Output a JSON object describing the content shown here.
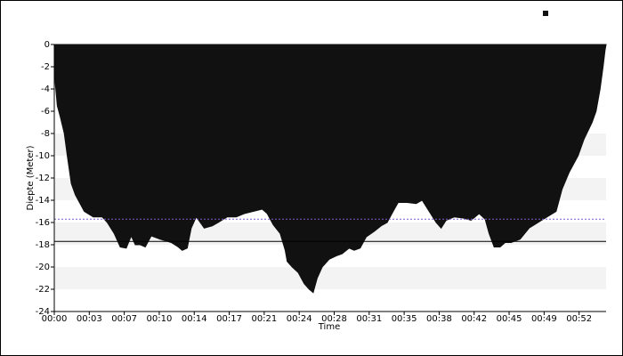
{
  "chart_data": {
    "type": "area",
    "xlabel": "Time",
    "ylabel": "Diepte (Meter)",
    "x": [
      0,
      0.1,
      0.3,
      0.6,
      1.0,
      1.3,
      1.7,
      2.1,
      3.0,
      3.9,
      4.8,
      5.3,
      6.0,
      6.6,
      7.2,
      7.7,
      8.1,
      8.6,
      9.1,
      9.7,
      10.6,
      11.7,
      12.4,
      12.8,
      13.3,
      13.7,
      14.2,
      15.0,
      15.8,
      16.4,
      17.3,
      18.2,
      19.0,
      19.9,
      20.8,
      21.3,
      21.9,
      22.6,
      23.1,
      23.3,
      23.8,
      24.4,
      25.0,
      25.5,
      25.9,
      26.3,
      26.8,
      27.5,
      28.2,
      28.8,
      29.5,
      30.0,
      30.6,
      31.2,
      32.0,
      32.7,
      33.3,
      33.9,
      34.4,
      35.3,
      36.2,
      36.8,
      37.5,
      38.2,
      38.7,
      39.2,
      40.0,
      40.9,
      41.7,
      42.5,
      43.1,
      43.5,
      44.0,
      44.6,
      45.1,
      45.7,
      46.6,
      47.5,
      48.4,
      49.3,
      50.2,
      50.8,
      51.5,
      52.4,
      53.0,
      53.8,
      54.2,
      54.6,
      54.9,
      55.1,
      55.2
    ],
    "series": [
      {
        "color": "#111111",
        "values": [
          0,
          -3.5,
          -5.5,
          -6.5,
          -8,
          -10,
          -12.5,
          -13.5,
          -15,
          -15.5,
          -15.5,
          -16,
          -17,
          -18.2,
          -18.3,
          -17.2,
          -18,
          -18,
          -18.2,
          -17.2,
          -17.5,
          -17.8,
          -18.2,
          -18.5,
          -18.3,
          -16.5,
          -15.5,
          -16.5,
          -16.3,
          -16,
          -15.5,
          -15.5,
          -15.2,
          -15,
          -14.8,
          -15.2,
          -16.2,
          -17,
          -18.5,
          -19.5,
          -20,
          -20.5,
          -21.5,
          -22,
          -22.3,
          -21,
          -20,
          -19.3,
          -19,
          -18.8,
          -18.3,
          -18.5,
          -18.3,
          -17.3,
          -16.8,
          -16.3,
          -16,
          -15,
          -14.2,
          -14.2,
          -14.3,
          -14,
          -15,
          -16,
          -16.5,
          -15.8,
          -15.5,
          -15.6,
          -15.8,
          -15.2,
          -15.7,
          -17,
          -18.2,
          -18.2,
          -17.8,
          -17.8,
          -17.5,
          -16.5,
          -16,
          -15.5,
          -15,
          -13,
          -11.5,
          -10,
          -8.5,
          -7,
          -6,
          -4,
          -2,
          -0.5,
          0
        ]
      }
    ],
    "reference_lines": [
      {
        "value": -15.7,
        "color": "#7a5cc4",
        "style": "dashed"
      },
      {
        "value": -17.7,
        "color": "#000000",
        "style": "solid"
      }
    ],
    "xlim": [
      0,
      55.2
    ],
    "xticks": [
      {
        "value": 0,
        "label": "00:00"
      },
      {
        "value": 3.5,
        "label": "00:03"
      },
      {
        "value": 7,
        "label": "00:07"
      },
      {
        "value": 10.5,
        "label": "00:10"
      },
      {
        "value": 14,
        "label": "00:14"
      },
      {
        "value": 17.5,
        "label": "00:17"
      },
      {
        "value": 21,
        "label": "00:21"
      },
      {
        "value": 24.5,
        "label": "00:24"
      },
      {
        "value": 28,
        "label": "00:28"
      },
      {
        "value": 31.5,
        "label": "00:31"
      },
      {
        "value": 35,
        "label": "00:35"
      },
      {
        "value": 38.5,
        "label": "00:38"
      },
      {
        "value": 42,
        "label": "00:42"
      },
      {
        "value": 45.5,
        "label": "00:45"
      },
      {
        "value": 49,
        "label": "00:49"
      },
      {
        "value": 52.5,
        "label": "00:52"
      }
    ],
    "ylim": [
      -24,
      0
    ],
    "yticks": [
      0,
      -2,
      -4,
      -6,
      -8,
      -10,
      -12,
      -14,
      -16,
      -18,
      -20,
      -22,
      -24
    ],
    "bands": true
  }
}
